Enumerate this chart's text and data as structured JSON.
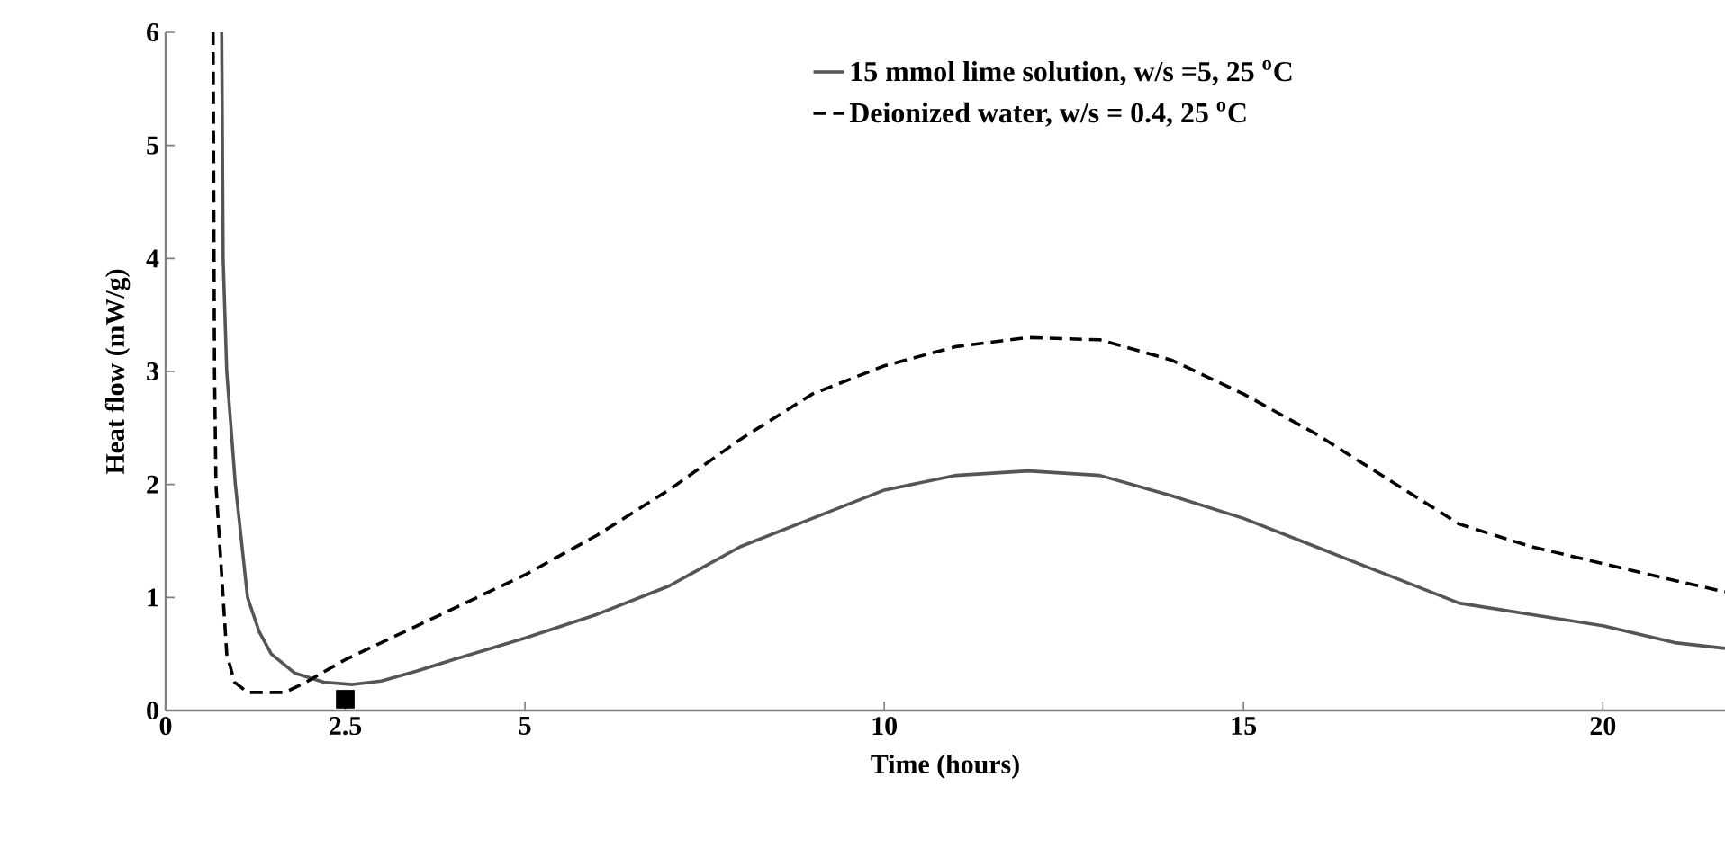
{
  "chart_data": {
    "type": "line",
    "xlabel": "Time (hours)",
    "ylabel": "Heat flow (mW/g)",
    "xlim": [
      0,
      21.7
    ],
    "ylim": [
      0,
      6
    ],
    "xticks": [
      0,
      2.5,
      5,
      10,
      15,
      20
    ],
    "yticks": [
      0,
      1,
      2,
      3,
      4,
      5,
      6
    ],
    "grid": false,
    "legend": "top",
    "series": [
      {
        "name": "15 mmol lime solution, w/s =5, 25 $^{o}$C",
        "color": "#555555",
        "line_style": "solid",
        "x": [
          0.78,
          0.8,
          0.85,
          0.97,
          1.14,
          1.3,
          1.47,
          1.8,
          2.2,
          2.6,
          3,
          3.5,
          4,
          5,
          6,
          7,
          8,
          9,
          10,
          11,
          12,
          13,
          14,
          15,
          16,
          17,
          18,
          19,
          20,
          21,
          21.7
        ],
        "values": [
          6,
          4,
          3,
          2,
          1,
          0.7,
          0.5,
          0.33,
          0.25,
          0.23,
          0.26,
          0.35,
          0.45,
          0.64,
          0.85,
          1.1,
          1.45,
          1.7,
          1.95,
          2.08,
          2.12,
          2.08,
          1.9,
          1.7,
          1.45,
          1.2,
          0.95,
          0.85,
          0.75,
          0.6,
          0.55
        ]
      },
      {
        "name": "Deionized water, w/s = 0.4, 25 $^{o}$C",
        "color": "#000000",
        "line_style": "dashed",
        "x": [
          0.66,
          0.68,
          0.7,
          0.8,
          0.85,
          0.96,
          1.14,
          1.66,
          1.95,
          2.5,
          3,
          4,
          5,
          6,
          7,
          8,
          9,
          10,
          11,
          12,
          13,
          14,
          15,
          16,
          17,
          18,
          19,
          20,
          21,
          21.7
        ],
        "values": [
          6,
          3,
          2,
          1,
          0.5,
          0.25,
          0.16,
          0.16,
          0.25,
          0.45,
          0.6,
          0.9,
          1.2,
          1.55,
          1.95,
          2.4,
          2.8,
          3.05,
          3.22,
          3.3,
          3.28,
          3.1,
          2.8,
          2.45,
          2.05,
          1.65,
          1.45,
          1.3,
          1.15,
          1.05
        ]
      },
      {
        "type": "scatter",
        "marker": "square",
        "color": "#000000",
        "x": [
          2.5
        ],
        "values": [
          0.1
        ]
      }
    ]
  }
}
